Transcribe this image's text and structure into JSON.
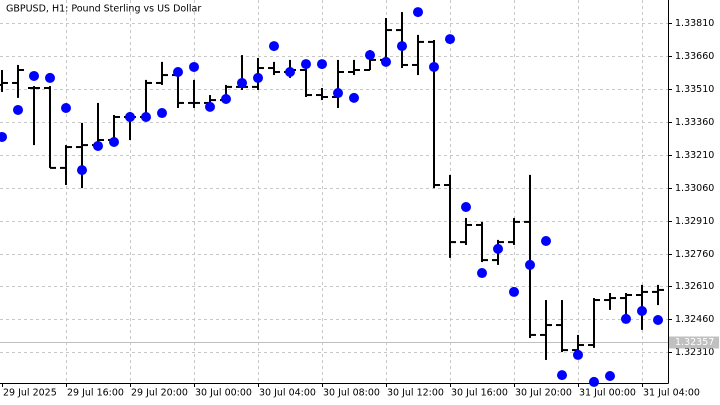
{
  "chart_data": {
    "type": "ohlc",
    "title": "GBPUSD, H1:  Pound Sterling vs US Dollar",
    "categories": [
      "29 Jul 2025",
      null,
      null,
      null,
      "29 Jul 16:00",
      null,
      null,
      null,
      "29 Jul 20:00",
      null,
      null,
      null,
      "30 Jul 00:00",
      null,
      null,
      null,
      "30 Jul 04:00",
      null,
      null,
      null,
      "30 Jul 08:00",
      null,
      null,
      null,
      "30 Jul 12:00",
      null,
      null,
      null,
      "30 Jul 16:00",
      null,
      null,
      null,
      "30 Jul 20:00",
      null,
      null,
      null,
      "31 Jul 00:00",
      null,
      null,
      null,
      "31 Jul 04:00",
      null
    ],
    "open": [
      1.33528,
      1.33537,
      1.33514,
      1.33514,
      1.3315,
      1.33245,
      1.33254,
      1.33277,
      1.33382,
      1.33382,
      1.33537,
      1.33573,
      1.33446,
      1.33446,
      1.33459,
      1.33519,
      1.33519,
      1.33605,
      1.33587,
      1.33596,
      1.33482,
      1.33473,
      1.33587,
      1.33596,
      1.33642,
      1.33778,
      1.33619,
      1.33724,
      1.33072,
      1.32812,
      1.3289,
      1.3273,
      1.32812,
      1.32904,
      1.32389,
      1.32434,
      1.3232,
      1.32343,
      1.32548,
      1.32557,
      1.32571,
      1.32585
    ],
    "high": [
      1.33596,
      1.33619,
      1.33523,
      1.33523,
      1.33254,
      1.33355,
      1.33446,
      1.33391,
      1.33405,
      1.33551,
      1.33633,
      1.33587,
      1.33551,
      1.33482,
      1.33528,
      1.33664,
      1.33651,
      1.33633,
      1.33642,
      1.33619,
      1.33514,
      1.33642,
      1.33642,
      1.33687,
      1.33833,
      1.3386,
      1.33756,
      1.33733,
      1.33118,
      1.32922,
      1.32904,
      1.32822,
      1.32922,
      1.33118,
      1.32548,
      1.32548,
      1.32389,
      1.32557,
      1.3258,
      1.3258,
      1.32617,
      1.32617
    ],
    "low": [
      1.33496,
      1.33469,
      1.33254,
      1.3315,
      1.33072,
      1.33058,
      1.33232,
      1.33254,
      1.33277,
      1.33368,
      1.33528,
      1.33423,
      1.33423,
      1.33437,
      1.3345,
      1.33505,
      1.33505,
      1.33573,
      1.3356,
      1.33473,
      1.33459,
      1.33423,
      1.33573,
      1.33596,
      1.33642,
      1.33605,
      1.33573,
      1.33058,
      1.3274,
      1.32799,
      1.32721,
      1.32708,
      1.32799,
      1.32375,
      1.32275,
      1.32311,
      1.32298,
      1.3233,
      1.32503,
      1.3248,
      1.32412,
      1.32525
    ],
    "close": [
      1.33537,
      1.33596,
      1.33514,
      1.3315,
      1.33245,
      1.33254,
      1.33277,
      1.33382,
      1.33382,
      1.33537,
      1.33573,
      1.33446,
      1.33446,
      1.33459,
      1.33519,
      1.33519,
      1.33605,
      1.33587,
      1.33596,
      1.33482,
      1.33473,
      1.33587,
      1.33596,
      1.33642,
      1.33778,
      1.33619,
      1.33724,
      1.33072,
      1.32812,
      1.3289,
      1.3273,
      1.32812,
      1.32904,
      1.32389,
      1.32434,
      1.3232,
      1.32343,
      1.32548,
      1.32557,
      1.32571,
      1.32585,
      1.32594
    ],
    "color": "#000000",
    "markers": {
      "type": "scatter",
      "color": "#0000ff",
      "values": [
        1.33291,
        1.33414,
        1.33569,
        1.3356,
        1.33423,
        1.3314,
        1.3325,
        1.33268,
        1.33382,
        1.33382,
        1.334,
        1.33587,
        1.3361,
        1.33428,
        1.33464,
        1.33537,
        1.3356,
        1.33705,
        1.33587,
        1.33623,
        1.33623,
        1.33491,
        1.33469,
        1.33664,
        1.33633,
        1.33705,
        1.3386,
        1.3361,
        1.33737,
        1.32972,
        1.32671,
        1.32781,
        1.32585,
        1.32708,
        1.32817,
        1.32206,
        1.32298,
        1.32175,
        1.32202,
        1.32462,
        1.32498,
        1.32457
      ]
    },
    "ylim": [
      1.3217,
      1.33915
    ],
    "yticks": [
      {
        "value": 1.3381,
        "label": "1.33810"
      },
      {
        "value": 1.3366,
        "label": "1.33660"
      },
      {
        "value": 1.3351,
        "label": "1.33510"
      },
      {
        "value": 1.3336,
        "label": "1.33360"
      },
      {
        "value": 1.3321,
        "label": "1.33210"
      },
      {
        "value": 1.3306,
        "label": "1.33060"
      },
      {
        "value": 1.3291,
        "label": "1.32910"
      },
      {
        "value": 1.3276,
        "label": "1.32760"
      },
      {
        "value": 1.3261,
        "label": "1.32610"
      },
      {
        "value": 1.3246,
        "label": "1.32460"
      },
      {
        "value": 1.3231,
        "label": "1.32310"
      }
    ],
    "last_price": 1.32357,
    "grid": true
  }
}
